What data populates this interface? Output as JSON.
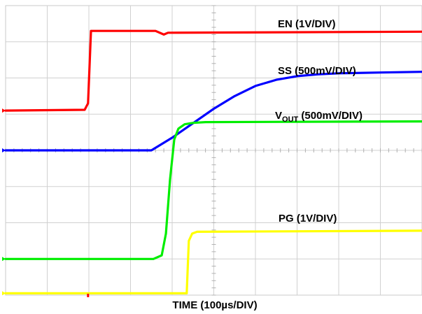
{
  "chart_data": {
    "type": "line",
    "title": "",
    "xlabel": "TIME (100µs/DIV)",
    "ylabel": "",
    "grid": true,
    "x_divisions": 10,
    "y_divisions": 8,
    "x_unit": "µs",
    "x_per_div": 100,
    "xlim": [
      0,
      1000
    ],
    "ylim_div": [
      0,
      8
    ],
    "series": [
      {
        "name": "EN (1V/DIV)",
        "label_main": "EN (1V/DIV)",
        "color": "#ff0000",
        "x": [
          0,
          190,
          198,
          205,
          360,
          380,
          390,
          1000
        ],
        "y_div": [
          5.1,
          5.12,
          5.3,
          7.3,
          7.3,
          7.2,
          7.25,
          7.28
        ]
      },
      {
        "name": "SS (500mV/DIV)",
        "label_main": "SS (500mV/DIV)",
        "color": "#0000ff",
        "x": [
          0,
          350,
          400,
          450,
          500,
          550,
          600,
          650,
          700,
          750,
          800,
          900,
          1000
        ],
        "y_div": [
          4.0,
          4.0,
          4.35,
          4.75,
          5.15,
          5.5,
          5.78,
          5.95,
          6.05,
          6.1,
          6.13,
          6.15,
          6.17
        ],
        "label_main_x_pos": "right"
      },
      {
        "name": "VOUT (500mV/DIV)",
        "label_main": "V",
        "label_sub": "OUT",
        "label_rest": " (500mV/DIV)",
        "color": "#00ee00",
        "x": [
          0,
          355,
          375,
          385,
          395,
          405,
          415,
          430,
          450,
          480,
          1000
        ],
        "y_div": [
          1.0,
          1.0,
          1.1,
          1.7,
          3.2,
          4.3,
          4.6,
          4.72,
          4.76,
          4.78,
          4.8
        ]
      },
      {
        "name": "PG (1V/DIV)",
        "label_main": "PG (1V/DIV)",
        "color": "#ffff00",
        "x": [
          0,
          435,
          440,
          448,
          460,
          1000
        ],
        "y_div": [
          0.05,
          0.05,
          1.5,
          1.7,
          1.75,
          1.78
        ]
      }
    ]
  }
}
